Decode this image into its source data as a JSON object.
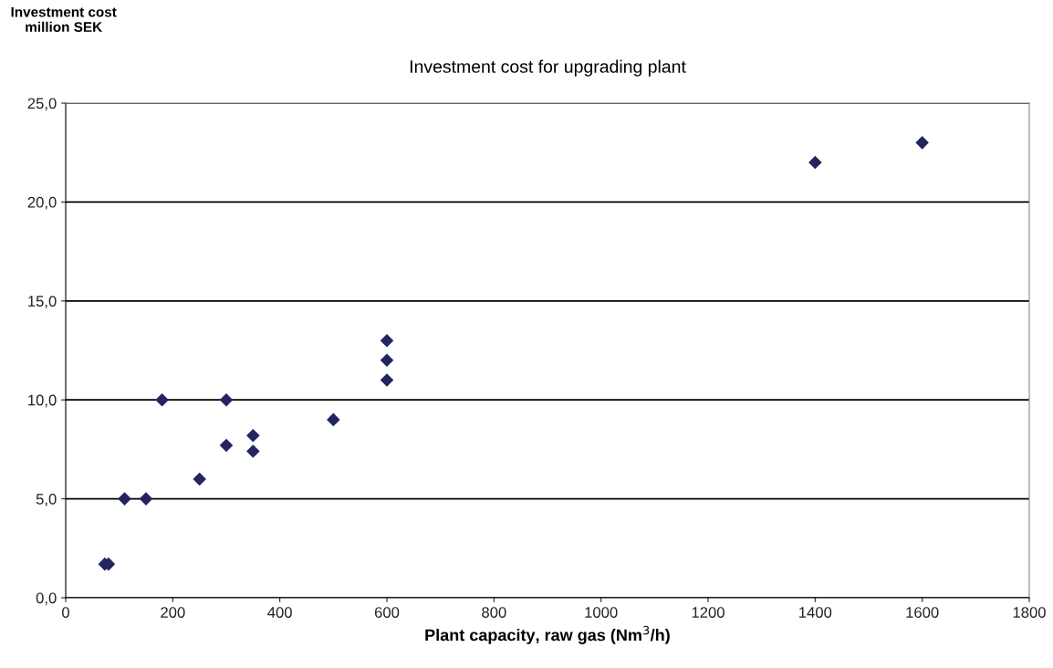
{
  "chart_data": {
    "type": "scatter",
    "title": "Investment cost for upgrading plant",
    "xlabel": "Plant capacity, raw gas (Nm$^{3}$/h)",
    "ylabel": "Investment cost\nmillion SEK",
    "x": [
      73,
      80,
      110,
      150,
      180,
      250,
      300,
      300,
      350,
      350,
      500,
      600,
      600,
      600,
      1400,
      1600
    ],
    "values": [
      1.7,
      1.7,
      5.0,
      5.0,
      10.0,
      6.0,
      10.0,
      7.7,
      8.2,
      7.4,
      9.0,
      13.0,
      12.0,
      11.0,
      22.0,
      23.0
    ],
    "color": "#24245e",
    "marker": "diamond",
    "xlim": [
      0,
      1800
    ],
    "xticks": [
      0,
      200,
      400,
      600,
      800,
      1000,
      1200,
      1400,
      1600,
      1800
    ],
    "ylim": [
      0,
      25
    ],
    "yticks": [
      {
        "value": 0,
        "label": "0,0"
      },
      {
        "value": 5,
        "label": "5,0"
      },
      {
        "value": 10,
        "label": "10,0"
      },
      {
        "value": 15,
        "label": "15,0"
      },
      {
        "value": 20,
        "label": "20,0"
      },
      {
        "value": 25,
        "label": "25,0"
      }
    ],
    "grid": "y",
    "legend": false
  }
}
